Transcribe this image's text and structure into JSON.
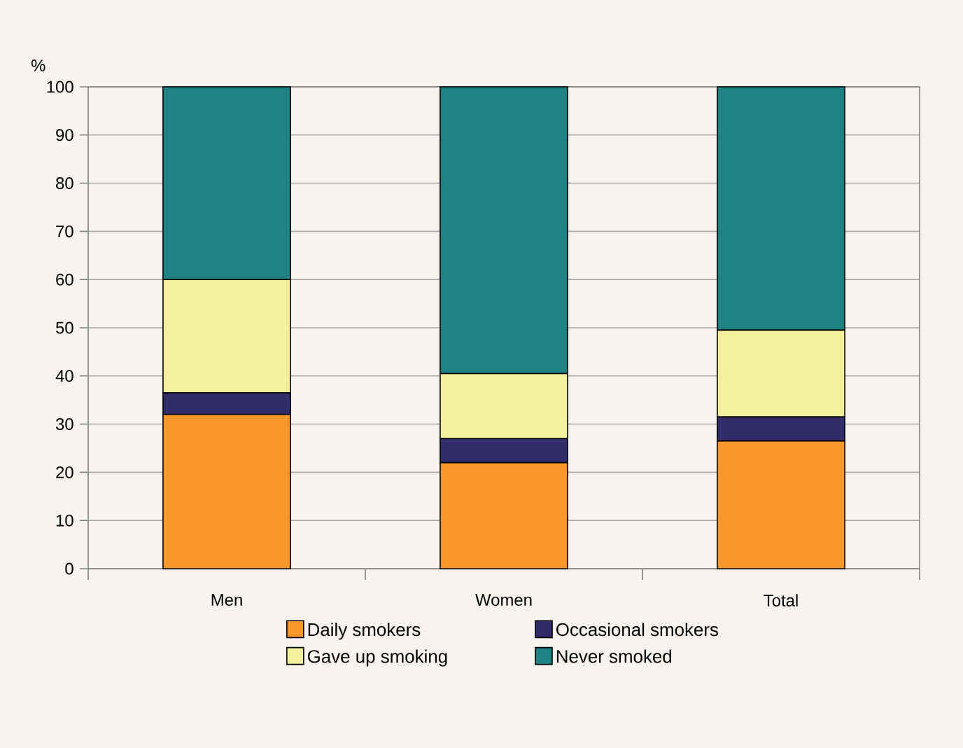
{
  "chart_data": {
    "type": "bar",
    "stacked": true,
    "ylabel": "%",
    "categories": [
      "Men",
      "Women",
      "Total"
    ],
    "series": [
      {
        "name": "Daily smokers",
        "color": "#f7962b",
        "values": [
          32,
          22,
          26.5
        ]
      },
      {
        "name": "Occasional smokers",
        "color": "#332c6b",
        "values": [
          4.5,
          5,
          5
        ]
      },
      {
        "name": "Gave up smoking",
        "color": "#f5f09b",
        "values": [
          23.5,
          13.5,
          18
        ]
      },
      {
        "name": "Never smoked",
        "color": "#1c8283",
        "values": [
          40,
          59.5,
          50.5
        ]
      }
    ],
    "ylim": [
      0,
      100
    ],
    "yticks": [
      0,
      10,
      20,
      30,
      40,
      50,
      60,
      70,
      80,
      90,
      100
    ],
    "grid": "y",
    "legend": "bottom"
  }
}
